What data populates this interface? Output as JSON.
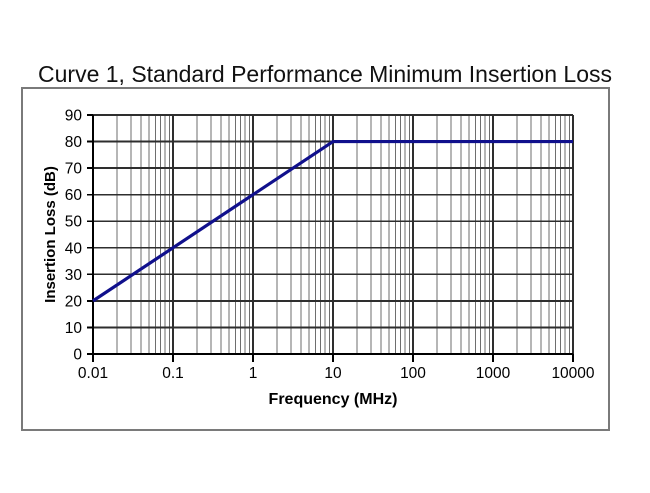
{
  "chart_data": {
    "type": "line",
    "title": "Curve 1, Standard Performance Minimum Insertion Loss",
    "xlabel": "Frequency (MHz)",
    "ylabel": "Insertion Loss (dB)",
    "x_scale": "log",
    "xlim": [
      0.01,
      10000
    ],
    "ylim": [
      0,
      90
    ],
    "x_tick_values": [
      0.01,
      0.1,
      1,
      10,
      100,
      1000,
      10000
    ],
    "x_tick_labels": [
      "0.01",
      "0.1",
      "1",
      "10",
      "100",
      "1000",
      "10000"
    ],
    "y_tick_values": [
      0,
      10,
      20,
      30,
      40,
      50,
      60,
      70,
      80,
      90
    ],
    "y_tick_labels": [
      "0",
      "10",
      "20",
      "30",
      "40",
      "50",
      "60",
      "70",
      "80",
      "90"
    ],
    "grid": {
      "major_x": true,
      "minor_x": true,
      "major_y": true,
      "minor_y": false
    },
    "legend": "none",
    "series": [
      {
        "name": "Curve 1",
        "color": "#10108C",
        "points": [
          [
            0.01,
            20
          ],
          [
            10,
            80
          ],
          [
            10000,
            80
          ]
        ]
      }
    ],
    "colors": {
      "line": "#10108C",
      "major_grid": "#2e2e2e",
      "minor_grid": "#6e6e6e",
      "axis": "#000000",
      "tick": "#000000",
      "frame_border": "#7a7a7a",
      "text": "#000000",
      "background": "#ffffff"
    }
  }
}
